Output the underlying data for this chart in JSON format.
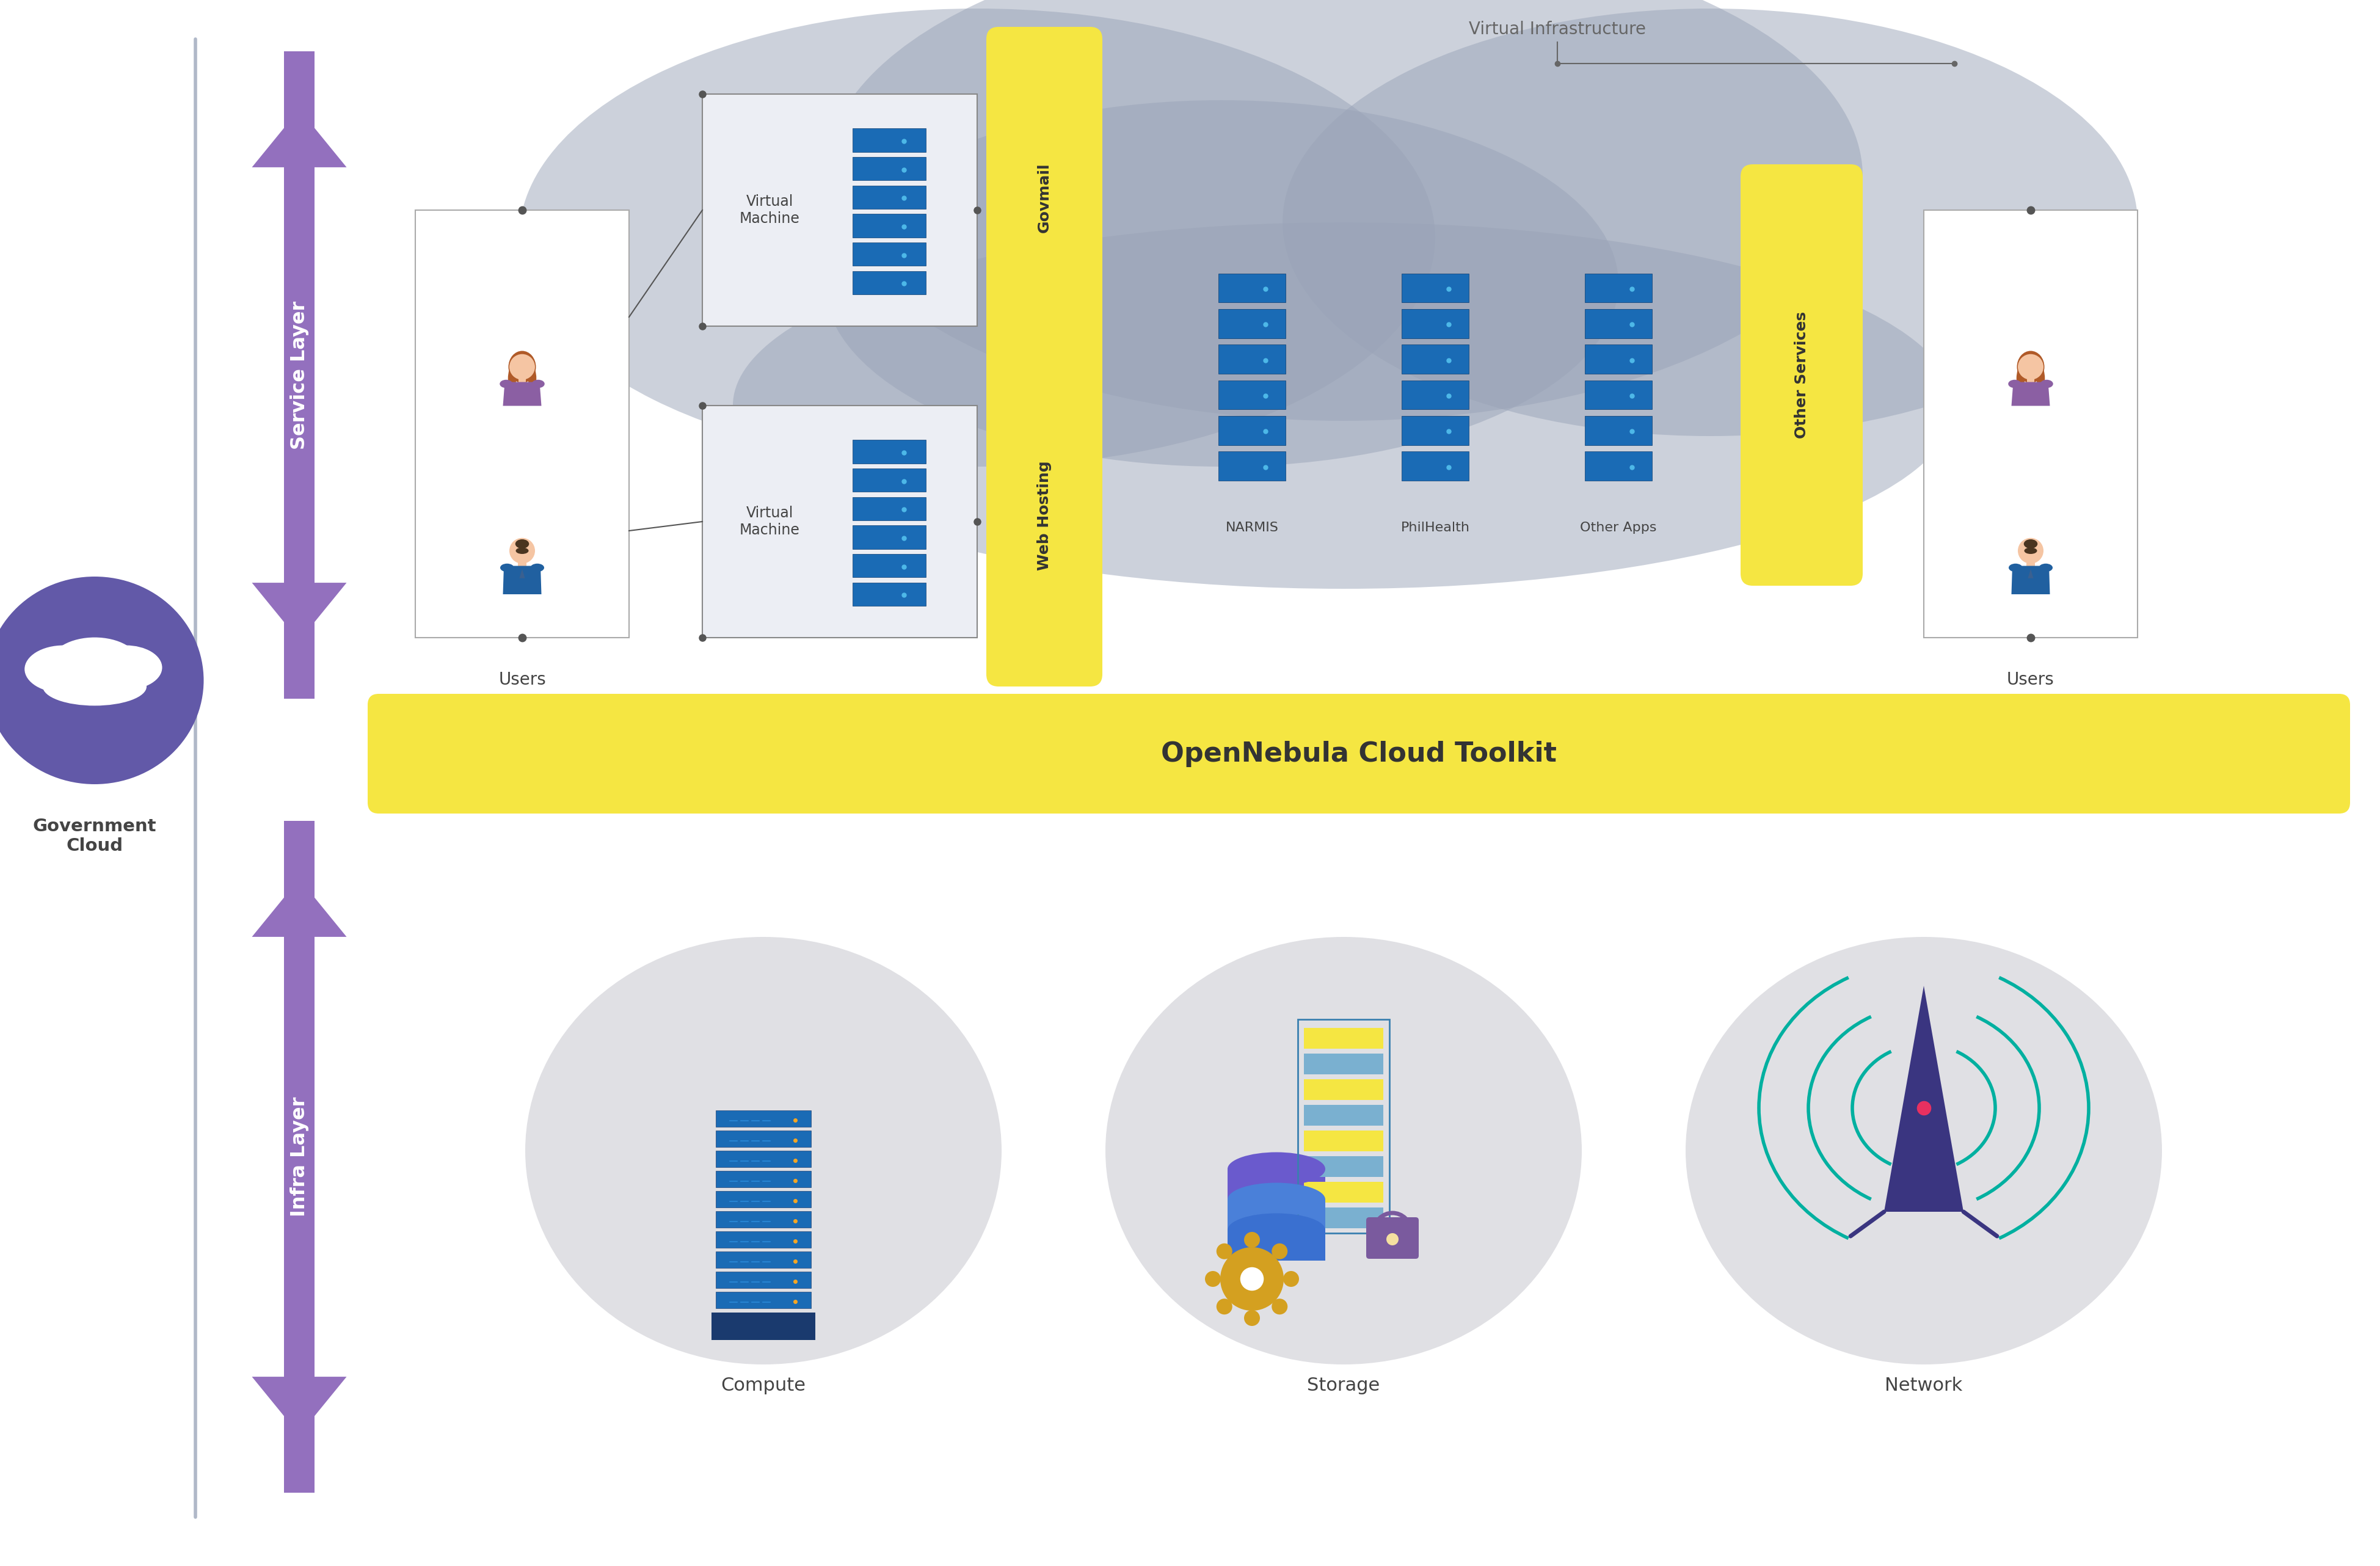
{
  "bg_color": "#ffffff",
  "purple_color": "#9370be",
  "purple_dark": "#5b4a9e",
  "gov_circle_color": "#6259a8",
  "yellow_color": "#f5e642",
  "cloud_gray": "#9aa4b8",
  "cloud_alpha": 0.5,
  "divider_color": "#b0b8c8",
  "gray_circle_color": "#e0e0e4",
  "server_blue": "#1a6bb5",
  "server_blue2": "#2980d9",
  "server_light": "#4db8e8",
  "vm_box_color": "#e8eaf0",
  "title": "Government\nCloud",
  "service_layer": "Service Layer",
  "infra_layer": "Infra Layer",
  "virtual_infra": "Virtual Infrastructure",
  "govmail": "Govmail",
  "web_hosting": "Web Hosting",
  "other_services": "Other Services",
  "vm_label": "Virtual\nMachine",
  "users_label": "Users",
  "narmis": "NARMIS",
  "philhealth": "PhilHealth",
  "other_apps": "Other Apps",
  "compute": "Compute",
  "storage": "Storage",
  "network": "Network",
  "opennebula": "OpenNebula Cloud Toolkit",
  "female_shirt": "#8b5fa3",
  "male_shirt": "#2060a0",
  "skin_color": "#f5c5a3",
  "skin_dark": "#d4956e",
  "hair_female": "#b05a28",
  "hair_male": "#4a3520",
  "text_dark": "#444444",
  "text_gray": "#666666",
  "server_dot1": "#f5a623",
  "server_dot2": "#5dc8f5",
  "teal_color": "#00b0a0",
  "navy_color": "#3a3580",
  "lock_gold": "#c8a020",
  "gear_gold": "#d4a020"
}
